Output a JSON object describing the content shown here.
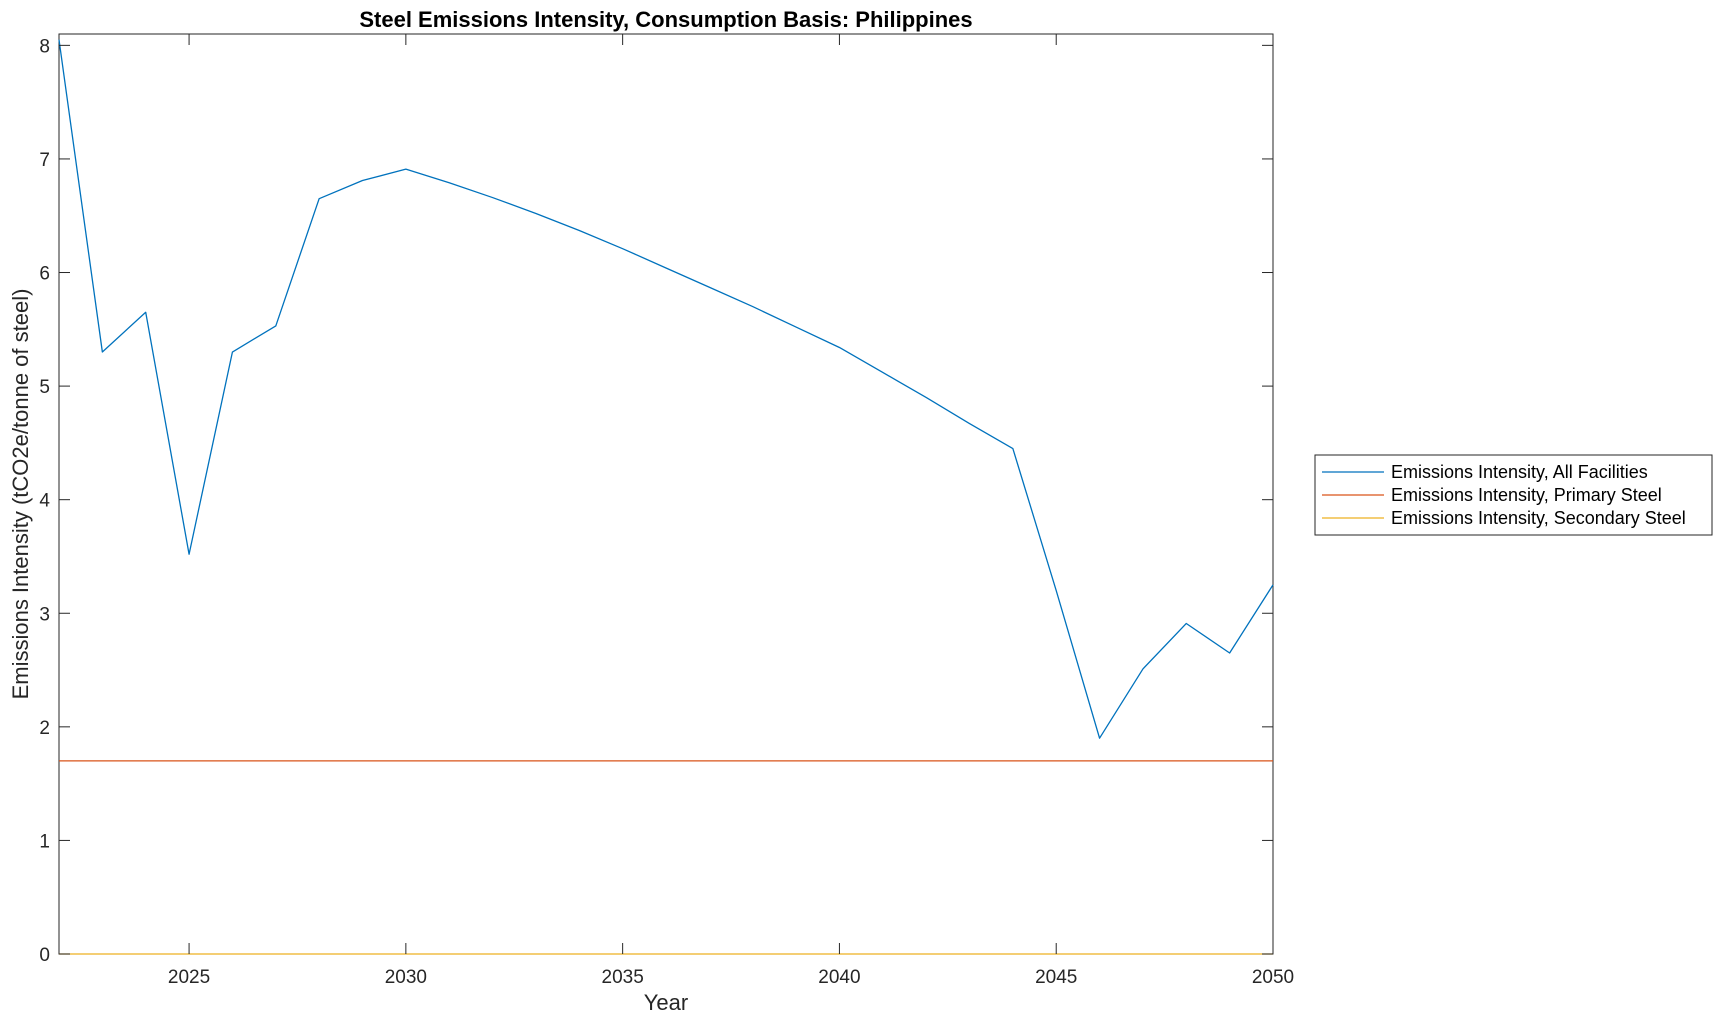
{
  "chart_data": {
    "type": "line",
    "title": "Steel Emissions Intensity, Consumption Basis: Philippines",
    "xlabel": "Year",
    "ylabel": "Emissions Intensity (tCO2e/tonne of steel)",
    "xlim": [
      2022,
      2050
    ],
    "ylim": [
      0,
      8.1
    ],
    "xticks": [
      2025,
      2030,
      2035,
      2040,
      2045,
      2050
    ],
    "yticks": [
      0,
      1,
      2,
      3,
      4,
      5,
      6,
      7,
      8
    ],
    "grid": false,
    "legend_location": "outside-right",
    "x": [
      2022,
      2023,
      2024,
      2025,
      2026,
      2027,
      2028,
      2029,
      2030,
      2031,
      2032,
      2033,
      2034,
      2035,
      2036,
      2037,
      2038,
      2039,
      2040,
      2041,
      2042,
      2043,
      2044,
      2045,
      2046,
      2047,
      2048,
      2049,
      2050
    ],
    "series": [
      {
        "name": "Emissions Intensity, All Facilities",
        "color": "#0072BD",
        "values": [
          8.05,
          5.3,
          5.65,
          3.52,
          5.3,
          5.53,
          6.65,
          6.81,
          6.91,
          6.79,
          6.66,
          6.52,
          6.37,
          6.21,
          6.04,
          5.87,
          5.7,
          5.52,
          5.34,
          5.12,
          4.9,
          4.67,
          4.45,
          3.2,
          1.9,
          2.51,
          2.91,
          2.65,
          3.25
        ]
      },
      {
        "name": "Emissions Intensity, Primary Steel",
        "color": "#D95319",
        "values": [
          1.7,
          1.7,
          1.7,
          1.7,
          1.7,
          1.7,
          1.7,
          1.7,
          1.7,
          1.7,
          1.7,
          1.7,
          1.7,
          1.7,
          1.7,
          1.7,
          1.7,
          1.7,
          1.7,
          1.7,
          1.7,
          1.7,
          1.7,
          1.7,
          1.7,
          1.7,
          1.7,
          1.7,
          1.7
        ]
      },
      {
        "name": "Emissions Intensity, Secondary Steel",
        "color": "#EDB120",
        "values": [
          0,
          0,
          0,
          0,
          0,
          0,
          0,
          0,
          0,
          0,
          0,
          0,
          0,
          0,
          0,
          0,
          0,
          0,
          0,
          0,
          0,
          0,
          0,
          0,
          0,
          0,
          0,
          0,
          0
        ]
      }
    ]
  }
}
